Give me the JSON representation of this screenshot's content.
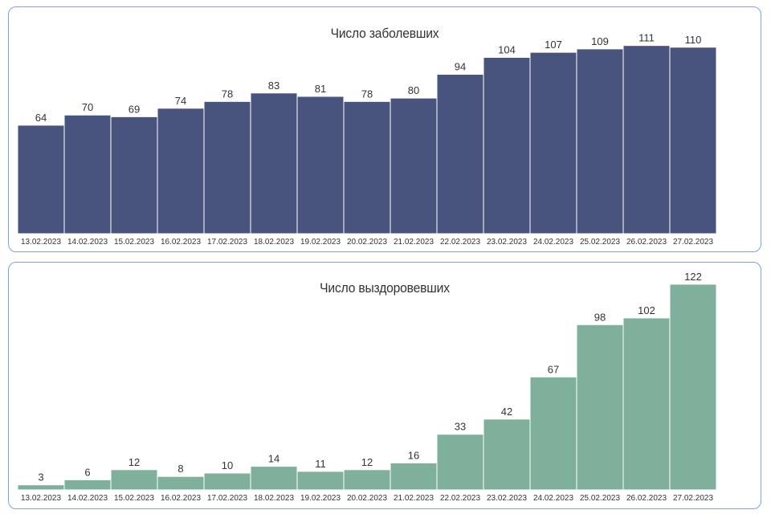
{
  "chart_data": [
    {
      "type": "bar",
      "title": "Число заболевших",
      "categories": [
        "13.02.2023",
        "14.02.2023",
        "15.02.2023",
        "16.02.2023",
        "17.02.2023",
        "18.02.2023",
        "19.02.2023",
        "20.02.2023",
        "21.02.2023",
        "22.02.2023",
        "23.02.2023",
        "24.02.2023",
        "25.02.2023",
        "26.02.2023",
        "27.02.2023"
      ],
      "values": [
        64,
        70,
        69,
        74,
        78,
        83,
        81,
        78,
        80,
        94,
        104,
        107,
        109,
        111,
        110
      ],
      "xlabel": "",
      "ylabel": "",
      "ylim": [
        0,
        135
      ],
      "color": "#48537e",
      "grid": false,
      "data_labels": true
    },
    {
      "type": "bar",
      "title": "Число выздоровевших",
      "categories": [
        "13.02.2023",
        "14.02.2023",
        "15.02.2023",
        "16.02.2023",
        "17.02.2023",
        "18.02.2023",
        "19.02.2023",
        "20.02.2023",
        "21.02.2023",
        "22.02.2023",
        "23.02.2023",
        "24.02.2023",
        "25.02.2023",
        "26.02.2023",
        "27.02.2023"
      ],
      "values": [
        3,
        6,
        12,
        8,
        10,
        14,
        11,
        12,
        16,
        33,
        42,
        67,
        98,
        102,
        122
      ],
      "xlabel": "",
      "ylabel": "",
      "ylim": [
        0,
        131
      ],
      "color": "#7fb09c",
      "grid": false,
      "data_labels": true
    }
  ]
}
